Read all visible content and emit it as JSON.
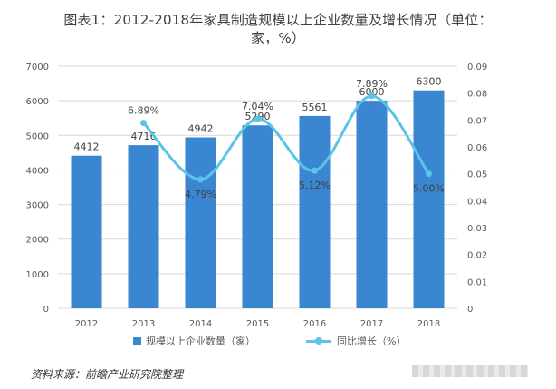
{
  "title_line1": "图表1：2012-2018年家具制造规模以上企业数量及增长情况（单位：",
  "title_line2": "家，%）",
  "source": "资料来源：前瞻产业研究院整理",
  "legend": {
    "bar": "规模以上企业数量（家）",
    "line": "同比增长（%）"
  },
  "colors": {
    "bar": "#3b86d1",
    "line": "#5bc3e8",
    "grid": "#d9d9d9",
    "axis_text": "#595959"
  },
  "chart_data": {
    "type": "bar",
    "categories": [
      "2012",
      "2013",
      "2014",
      "2015",
      "2016",
      "2017",
      "2018"
    ],
    "series": [
      {
        "name": "规模以上企业数量（家）",
        "type": "bar",
        "axis": "left",
        "values": [
          4412,
          4716,
          4942,
          5290,
          5561,
          6000,
          6300
        ],
        "labels": [
          "4412",
          "4716",
          "4942",
          "5290",
          "5561",
          "6000",
          "6300"
        ]
      },
      {
        "name": "同比增长（%）",
        "type": "line",
        "axis": "right",
        "values": [
          null,
          0.0689,
          0.0479,
          0.0704,
          0.0512,
          0.0789,
          0.05
        ],
        "labels": [
          "",
          "6.89%",
          "4.79%",
          "7.04%",
          "5.12%",
          "7.89%",
          "5.00%"
        ]
      }
    ],
    "y_left": {
      "min": 0,
      "max": 7000,
      "ticks": [
        "0",
        "1000",
        "2000",
        "3000",
        "4000",
        "5000",
        "6000",
        "7000"
      ]
    },
    "y_right": {
      "min": 0,
      "max": 0.09,
      "ticks": [
        "0",
        "0.01",
        "0.02",
        "0.03",
        "0.04",
        "0.05",
        "0.06",
        "0.07",
        "0.08",
        "0.09"
      ]
    },
    "grid": true,
    "legend_position": "bottom"
  }
}
